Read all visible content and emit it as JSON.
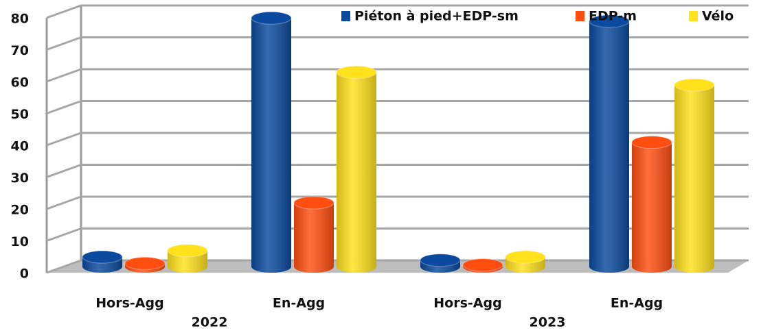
{
  "chart_data": {
    "type": "bar3d",
    "categories": [
      "Hors-Agg",
      "En-Agg",
      "Hors-Agg",
      "En-Agg"
    ],
    "groups": [
      "2022",
      "2023"
    ],
    "series": [
      {
        "name": "Piéton à pied+EDP-sm",
        "color": "#0b4a9e",
        "values": [
          3,
          78,
          2,
          77
        ]
      },
      {
        "name": "EDP-m",
        "color": "#ff4e10",
        "values": [
          1,
          20,
          0.5,
          39
        ]
      },
      {
        "name": "Vélo",
        "color": "#ffe11c",
        "values": [
          5,
          61,
          3,
          57
        ]
      }
    ],
    "ylim": [
      0,
      80
    ],
    "yticks": [
      0,
      10,
      20,
      30,
      40,
      50,
      60,
      70,
      80
    ],
    "grid": true,
    "legend": "top-right"
  }
}
